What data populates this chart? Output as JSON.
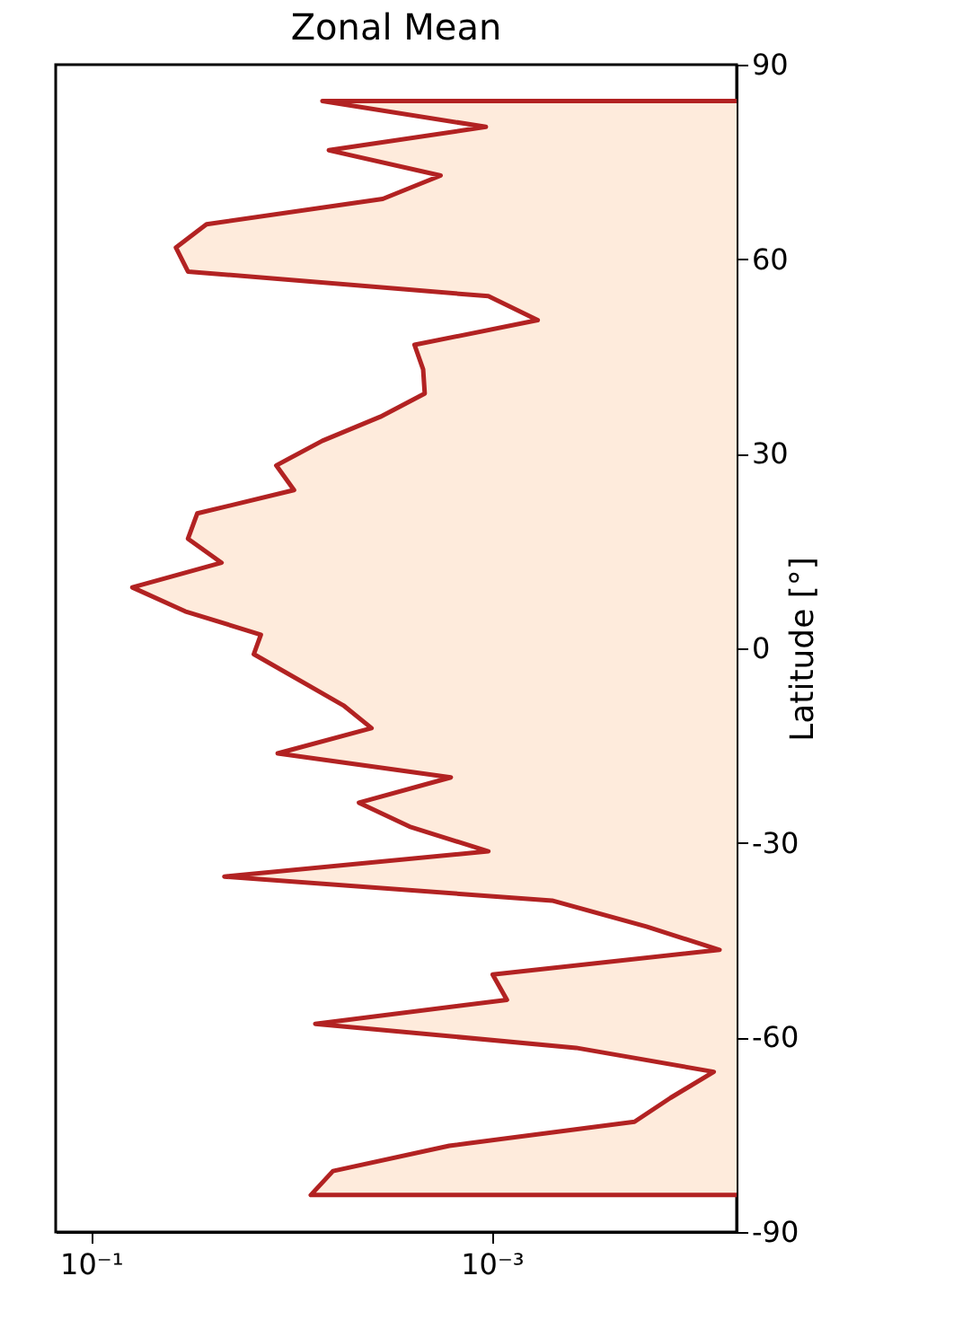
{
  "chart_data": {
    "type": "area",
    "title": "Zonal Mean",
    "ylabel": "Latitude [°]",
    "orientation": "horizontal",
    "log": "x",
    "x": [
      84.4,
      84.4,
      80.4,
      76.8,
      72.9,
      69.3,
      65.4,
      61.8,
      58.1,
      54.3,
      50.6,
      46.8,
      43.0,
      39.3,
      35.7,
      32.0,
      28.2,
      24.4,
      20.8,
      16.9,
      13.2,
      9.4,
      5.7,
      2.1,
      -0.9,
      -8.8,
      -12.3,
      -16.2,
      -19.9,
      -23.8,
      -27.5,
      -31.3,
      -35.2,
      -38.9,
      -42.9,
      -46.5,
      -50.3,
      -54.2,
      -57.9,
      -61.6,
      -65.3,
      -69.3,
      -73.0,
      -76.7,
      -80.6,
      -84.3,
      -84.3
    ],
    "series": [
      {
        "color": "#b22222",
        "values": [
          6e-05,
          0.007,
          0.00107,
          0.0065,
          0.0018,
          0.0035,
          0.0265,
          0.0377,
          0.0328,
          0.00104,
          0.00059,
          0.00243,
          0.0022,
          0.00216,
          0.0036,
          0.007,
          0.0119,
          0.0097,
          0.0295,
          0.0328,
          0.0223,
          0.0622,
          0.0339,
          0.0142,
          0.0154,
          0.0055,
          0.00398,
          0.0117,
          0.0016,
          0.0046,
          0.00257,
          0.00104,
          0.0216,
          0.0005,
          0.000169,
          7.3e-05,
          0.00099,
          0.00084,
          0.0076,
          0.00038,
          7.8e-05,
          0.000128,
          0.000194,
          0.00163,
          0.0062,
          0.008,
          6e-05
        ]
      }
    ],
    "xlim": [
      0.15,
      6e-05
    ],
    "xticks": [
      {
        "value": 0.1,
        "label": "10⁻¹"
      },
      {
        "value": 0.001,
        "label": "10⁻³"
      }
    ],
    "ylim": [
      -90,
      90
    ],
    "yticks": [
      -90,
      -60,
      -30,
      0,
      30,
      60,
      90
    ],
    "grid": false
  }
}
